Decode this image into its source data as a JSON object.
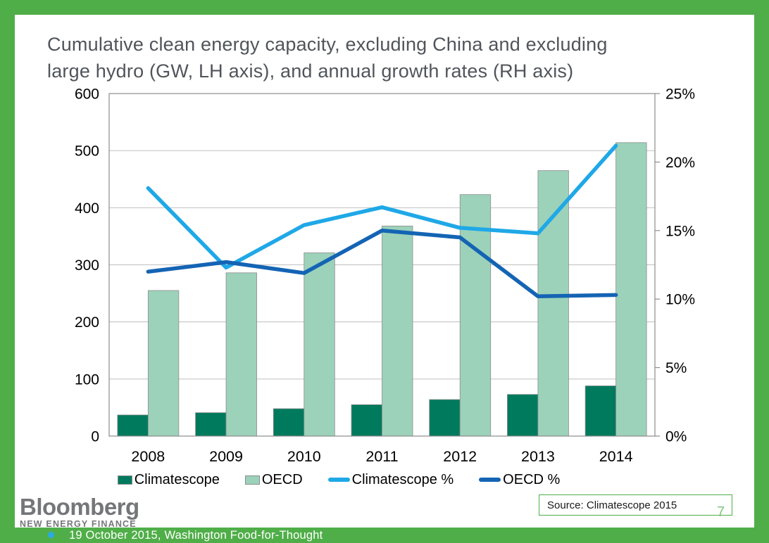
{
  "title": {
    "line1": "Cumulative clean energy capacity, excluding China and excluding",
    "line2": "large hydro (GW, LH axis), and annual growth rates (RH axis)"
  },
  "chart_data": {
    "type": "combo",
    "title": "Cumulative clean energy capacity, excluding China and excluding large hydro (GW, LH axis), and annual growth rates (RH axis)",
    "categories": [
      "2008",
      "2009",
      "2010",
      "2011",
      "2012",
      "2013",
      "2014"
    ],
    "series": [
      {
        "name": "Climatescope",
        "type": "bar",
        "axis": "left",
        "color": "#007A5D",
        "values": [
          37,
          41,
          48,
          55,
          64,
          73,
          88
        ]
      },
      {
        "name": "OECD",
        "type": "bar",
        "axis": "left",
        "color": "#9CD2BA",
        "values": [
          255,
          286,
          321,
          368,
          423,
          465,
          514
        ]
      },
      {
        "name": "Climatescope %",
        "type": "line",
        "axis": "right",
        "color": "#1FA8E7",
        "values": [
          18.1,
          12.3,
          15.4,
          16.7,
          15.2,
          14.8,
          21.2
        ]
      },
      {
        "name": "OECD %",
        "type": "line",
        "axis": "right",
        "color": "#1464B4",
        "values": [
          12.0,
          12.7,
          11.9,
          15.0,
          14.5,
          10.2,
          10.3
        ]
      }
    ],
    "left_axis": {
      "min": 0,
      "max": 600,
      "step": 100,
      "unit": "GW",
      "tick_labels": [
        "0",
        "100",
        "200",
        "300",
        "400",
        "500",
        "600"
      ]
    },
    "right_axis": {
      "min": 0,
      "max": 25,
      "step": 5,
      "unit": "percent",
      "tick_labels": [
        "0%",
        "5%",
        "10%",
        "15%",
        "20%",
        "25%"
      ]
    },
    "grid": true,
    "legend_position": "bottom"
  },
  "footer": {
    "logo_main": "Bloomberg",
    "logo_sub": "NEW ENERGY FINANCE",
    "source_text": "Source: Climatescope 2015",
    "page_number": "7",
    "date_text": "19 October 2015, Washington Food-for-Thought"
  },
  "colors": {
    "border_green": "#4FAE48",
    "title_text": "#50555B",
    "grid": "#BFBFBF",
    "axis": "#8C8C8C",
    "bar_stroke": "#8C8C8C",
    "axis_text": "#000000",
    "logo_gray": "#75767A",
    "bullet_cyan": "#29ABE2",
    "page_number_green": "#7FC583",
    "footer_text": "#FFFFFF"
  }
}
